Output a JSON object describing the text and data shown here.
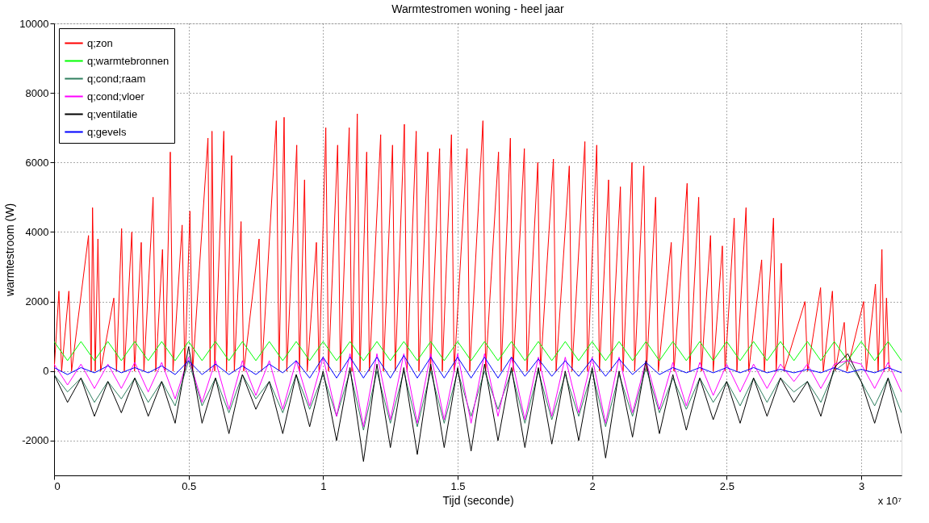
{
  "chart_data": {
    "type": "line",
    "title": "Warmtestromen woning - heel jaar",
    "xlabel": "Tijd (seconde)",
    "ylabel": "warmtestroom (W)",
    "annotations": [
      "x 10⁷"
    ],
    "xlim": [
      0,
      3.15
    ],
    "ylim": [
      -3000,
      10000
    ],
    "xticks": [
      0,
      0.5,
      1,
      1.5,
      2,
      2.5,
      3
    ],
    "yticks": [
      -2000,
      0,
      2000,
      4000,
      6000,
      8000,
      10000
    ],
    "grid": true,
    "legend": "top left",
    "line_style": "solid",
    "marker": "none",
    "x": [
      0,
      0.05,
      0.1,
      0.15,
      0.2,
      0.25,
      0.3,
      0.35,
      0.4,
      0.45,
      0.5,
      0.55,
      0.6,
      0.65,
      0.7,
      0.75,
      0.8,
      0.85,
      0.9,
      0.95,
      1.0,
      1.05,
      1.1,
      1.15,
      1.2,
      1.25,
      1.3,
      1.35,
      1.4,
      1.45,
      1.5,
      1.55,
      1.6,
      1.65,
      1.7,
      1.75,
      1.8,
      1.85,
      1.9,
      1.95,
      2.0,
      2.05,
      2.1,
      2.15,
      2.2,
      2.25,
      2.3,
      2.35,
      2.4,
      2.45,
      2.5,
      2.55,
      2.6,
      2.65,
      2.7,
      2.75,
      2.8,
      2.85,
      2.9,
      2.95,
      3.0,
      3.05,
      3.1,
      3.15
    ],
    "series": [
      {
        "name": "q;zon",
        "color": "#ff0000",
        "x": [
          0,
          0.018,
          0.028,
          0.055,
          0.065,
          0.128,
          0.138,
          0.143,
          0.153,
          0.163,
          0.173,
          0.222,
          0.232,
          0.251,
          0.261,
          0.289,
          0.299,
          0.324,
          0.334,
          0.368,
          0.378,
          0.403,
          0.413,
          0.432,
          0.442,
          0.476,
          0.486,
          0.505,
          0.515,
          0.572,
          0.58,
          0.587,
          0.597,
          0.631,
          0.641,
          0.66,
          0.67,
          0.695,
          0.705,
          0.762,
          0.772,
          0.826,
          0.836,
          0.855,
          0.865,
          0.902,
          0.912,
          0.931,
          0.941,
          0.975,
          0.985,
          1.01,
          1.02,
          1.054,
          1.064,
          1.097,
          1.107,
          1.127,
          1.137,
          1.162,
          1.172,
          1.214,
          1.224,
          1.258,
          1.268,
          1.302,
          1.312,
          1.346,
          1.356,
          1.389,
          1.399,
          1.433,
          1.443,
          1.477,
          1.487,
          1.535,
          1.545,
          1.594,
          1.604,
          1.652,
          1.662,
          1.696,
          1.706,
          1.748,
          1.758,
          1.798,
          1.808,
          1.856,
          1.866,
          1.915,
          1.925,
          1.973,
          1.983,
          2.017,
          2.027,
          2.061,
          2.071,
          2.105,
          2.115,
          2.148,
          2.158,
          2.192,
          2.202,
          2.236,
          2.246,
          2.294,
          2.304,
          2.353,
          2.363,
          2.396,
          2.406,
          2.44,
          2.45,
          2.484,
          2.494,
          2.528,
          2.538,
          2.572,
          2.582,
          2.63,
          2.64,
          2.674,
          2.684,
          2.703,
          2.713,
          2.791,
          2.801,
          2.849,
          2.859,
          2.893,
          2.903,
          2.937,
          2.947,
          3.009,
          3.019,
          3.053,
          3.063,
          3.077,
          3.085,
          3.094,
          3.104
        ],
        "values": [
          0,
          2300,
          0,
          2300,
          0,
          3900,
          0,
          4700,
          0,
          3800,
          0,
          2100,
          0,
          4100,
          0,
          4000,
          0,
          3700,
          0,
          5000,
          0,
          3500,
          0,
          6300,
          0,
          4200,
          0,
          4600,
          0,
          6700,
          0,
          6900,
          0,
          6900,
          0,
          6200,
          0,
          4300,
          0,
          3800,
          0,
          7200,
          0,
          7300,
          0,
          6500,
          0,
          5500,
          0,
          3700,
          0,
          7000,
          0,
          6500,
          0,
          7000,
          0,
          7400,
          0,
          6300,
          0,
          6800,
          0,
          6500,
          0,
          7100,
          0,
          6900,
          0,
          6300,
          0,
          6400,
          0,
          6800,
          0,
          6400,
          0,
          7200,
          0,
          6300,
          0,
          6700,
          0,
          6400,
          0,
          6000,
          0,
          6100,
          0,
          5900,
          0,
          6600,
          0,
          6500,
          0,
          5500,
          0,
          5300,
          0,
          6000,
          0,
          5900,
          0,
          5000,
          0,
          3700,
          0,
          5400,
          0,
          5000,
          0,
          3900,
          0,
          3600,
          0,
          4400,
          0,
          4700,
          0,
          3200,
          0,
          4400,
          0,
          3100,
          0,
          2000,
          0,
          2400,
          0,
          2300,
          0,
          1400,
          0,
          2000,
          0,
          2500,
          0,
          3500,
          0,
          2100,
          0
        ]
      },
      {
        "name": "q;warmtebronnen",
        "color": "#00ff00",
        "values": [
          850,
          300,
          850,
          300,
          850,
          300,
          850,
          300,
          850,
          300,
          850,
          300,
          850,
          300,
          850,
          300,
          850,
          300,
          850,
          300,
          850,
          300,
          850,
          300,
          850,
          300,
          850,
          300,
          850,
          300,
          850,
          300,
          850,
          300,
          850,
          300,
          850,
          300,
          850,
          300,
          850,
          300,
          850,
          300,
          850,
          300,
          850,
          300,
          850,
          300,
          850,
          300,
          850,
          300,
          850,
          300,
          850,
          300,
          850,
          300,
          850,
          300,
          850,
          300
        ]
      },
      {
        "name": "q;cond;raam",
        "color": "#2f7f5f",
        "values": [
          -100,
          -600,
          -200,
          -900,
          -300,
          -800,
          -200,
          -900,
          -300,
          -1000,
          300,
          -1000,
          -200,
          -1200,
          -100,
          -800,
          -300,
          -1200,
          -100,
          -1100,
          -100,
          -1300,
          0,
          -1700,
          0,
          -1500,
          0,
          -1600,
          0,
          -1500,
          0,
          -1300,
          0,
          -1100,
          0,
          -1500,
          0,
          -1400,
          -100,
          -1300,
          0,
          -1600,
          -100,
          -1300,
          100,
          -1200,
          -200,
          -1100,
          -200,
          -900,
          -300,
          -1000,
          -200,
          -900,
          -200,
          -600,
          -300,
          -900,
          0,
          300,
          -300,
          -1000,
          -200,
          -1200
        ]
      },
      {
        "name": "q;cond;vloer",
        "color": "#ff00ff",
        "values": [
          200,
          -400,
          200,
          -500,
          200,
          -500,
          250,
          -600,
          250,
          -800,
          400,
          -900,
          300,
          -1100,
          300,
          -700,
          300,
          -1100,
          300,
          -1000,
          400,
          -1300,
          500,
          -1600,
          500,
          -1400,
          500,
          -1500,
          500,
          -1400,
          500,
          -1500,
          500,
          -1300,
          400,
          -1400,
          400,
          -1300,
          400,
          -1200,
          400,
          -1500,
          400,
          -1200,
          300,
          -1100,
          250,
          -1000,
          250,
          -700,
          200,
          -600,
          200,
          -500,
          200,
          -300,
          200,
          -500,
          200,
          300,
          200,
          -500,
          250,
          -600
        ]
      },
      {
        "name": "q;ventilatie",
        "color": "#000000",
        "values": [
          -100,
          -900,
          -200,
          -1300,
          -300,
          -1200,
          -200,
          -1300,
          -300,
          -1500,
          700,
          -1500,
          -200,
          -1800,
          -100,
          -1100,
          -300,
          -1800,
          -100,
          -1600,
          0,
          -2000,
          100,
          -2600,
          200,
          -2200,
          100,
          -2400,
          200,
          -2200,
          100,
          -2300,
          200,
          -2000,
          100,
          -2200,
          100,
          -2100,
          0,
          -2000,
          100,
          -2500,
          0,
          -1900,
          300,
          -1800,
          -100,
          -1700,
          -200,
          -1400,
          -300,
          -1500,
          -200,
          -1300,
          -200,
          -900,
          -300,
          -1300,
          100,
          500,
          -300,
          -1500,
          -200,
          -1800
        ]
      },
      {
        "name": "q;gevels",
        "color": "#0000ff",
        "values": [
          100,
          -100,
          100,
          -50,
          150,
          -50,
          100,
          -50,
          150,
          -100,
          300,
          -100,
          200,
          -100,
          150,
          -100,
          200,
          -50,
          300,
          -200,
          400,
          -200,
          400,
          -200,
          400,
          -200,
          450,
          -200,
          400,
          -200,
          400,
          -200,
          400,
          -200,
          400,
          -150,
          350,
          -150,
          300,
          -150,
          350,
          -150,
          350,
          -100,
          250,
          -100,
          100,
          -50,
          100,
          -50,
          100,
          -50,
          100,
          -50,
          50,
          -50,
          50,
          -50,
          100,
          -50,
          50,
          -50,
          100,
          -50
        ]
      }
    ]
  }
}
